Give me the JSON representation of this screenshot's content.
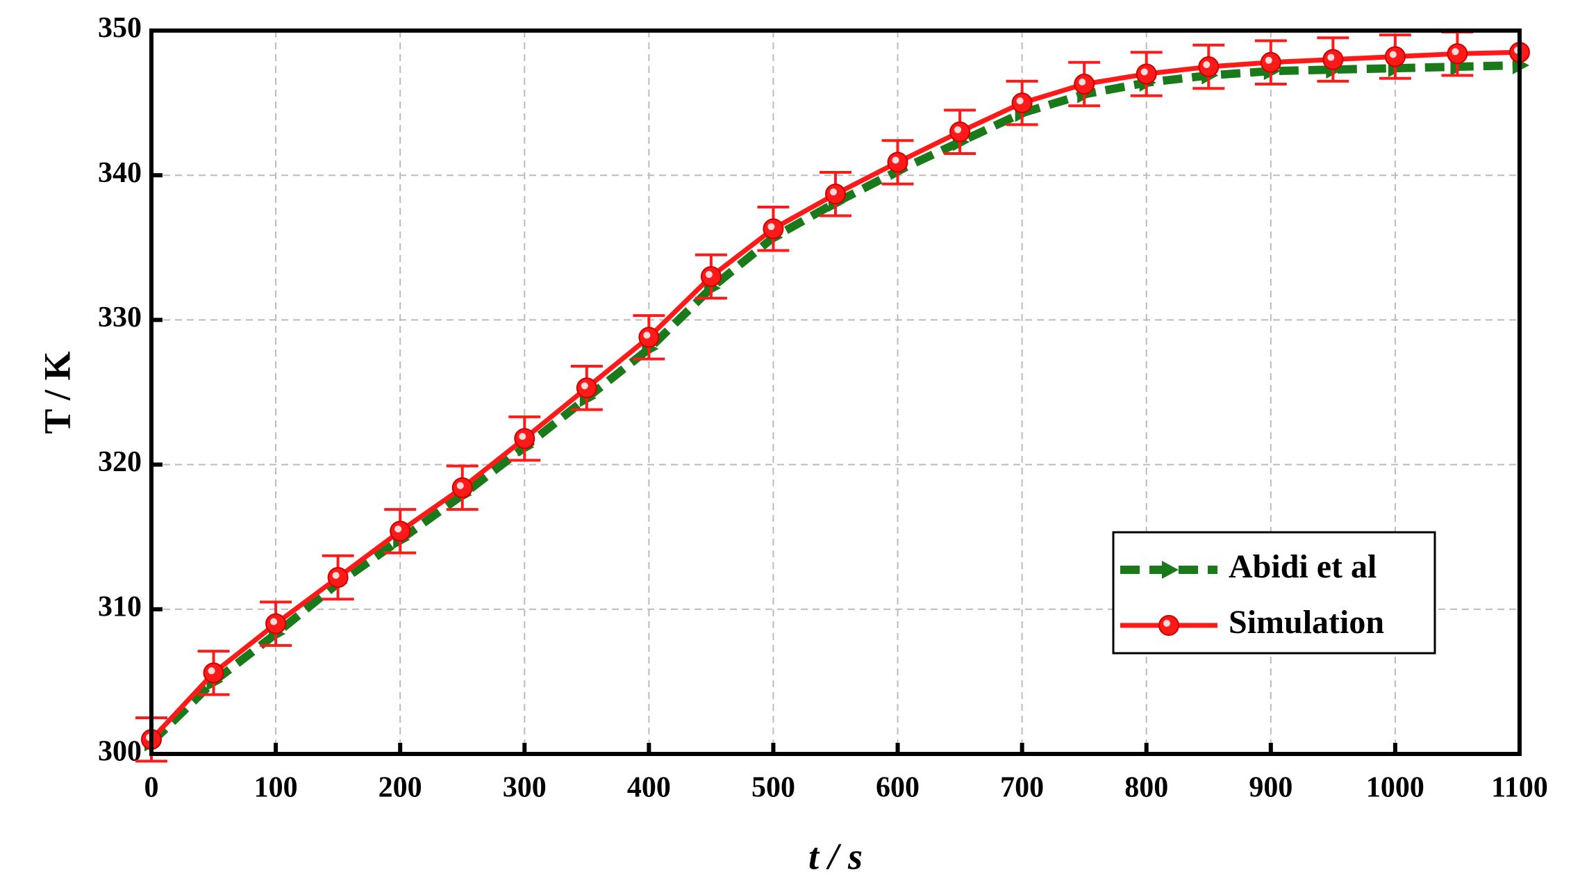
{
  "chart_data": {
    "type": "line",
    "xlabel": "t / s",
    "ylabel": "T / K",
    "x": [
      0,
      50,
      100,
      150,
      200,
      250,
      300,
      350,
      400,
      450,
      500,
      550,
      600,
      650,
      700,
      750,
      800,
      850,
      900,
      950,
      1000,
      1050,
      1100
    ],
    "series": [
      {
        "name": "Abidi et al",
        "color": "#1a7a1a",
        "marker": "triangle",
        "dashed": true,
        "values": [
          300.8,
          305,
          308.3,
          311.8,
          314.8,
          317.9,
          321.2,
          324.6,
          328,
          332.2,
          335.7,
          338.1,
          340.3,
          342.3,
          344.3,
          345.6,
          346.4,
          346.9,
          347.2,
          347.3,
          347.4,
          347.5,
          347.6
        ]
      },
      {
        "name": "Simulation",
        "color": "#ff1a1a",
        "marker": "circle",
        "dashed": false,
        "values": [
          301,
          305.6,
          309,
          312.2,
          315.4,
          318.4,
          321.8,
          325.3,
          328.8,
          333,
          336.3,
          338.7,
          340.9,
          343,
          345,
          346.3,
          347,
          347.5,
          347.8,
          348,
          348.2,
          348.4,
          348.5
        ],
        "errors": [
          1.5,
          1.5,
          1.5,
          1.5,
          1.5,
          1.5,
          1.5,
          1.5,
          1.5,
          1.5,
          1.5,
          1.5,
          1.5,
          1.5,
          1.5,
          1.5,
          1.5,
          1.5,
          1.5,
          1.5,
          1.5,
          1.5,
          null
        ]
      }
    ],
    "xlim": [
      0,
      1100
    ],
    "xticks": [
      0,
      100,
      200,
      300,
      400,
      500,
      600,
      700,
      800,
      900,
      1000,
      1100
    ],
    "ylim": [
      300,
      350
    ],
    "yticks": [
      300,
      310,
      320,
      330,
      340,
      350
    ],
    "grid": true,
    "legend": "lower right"
  }
}
